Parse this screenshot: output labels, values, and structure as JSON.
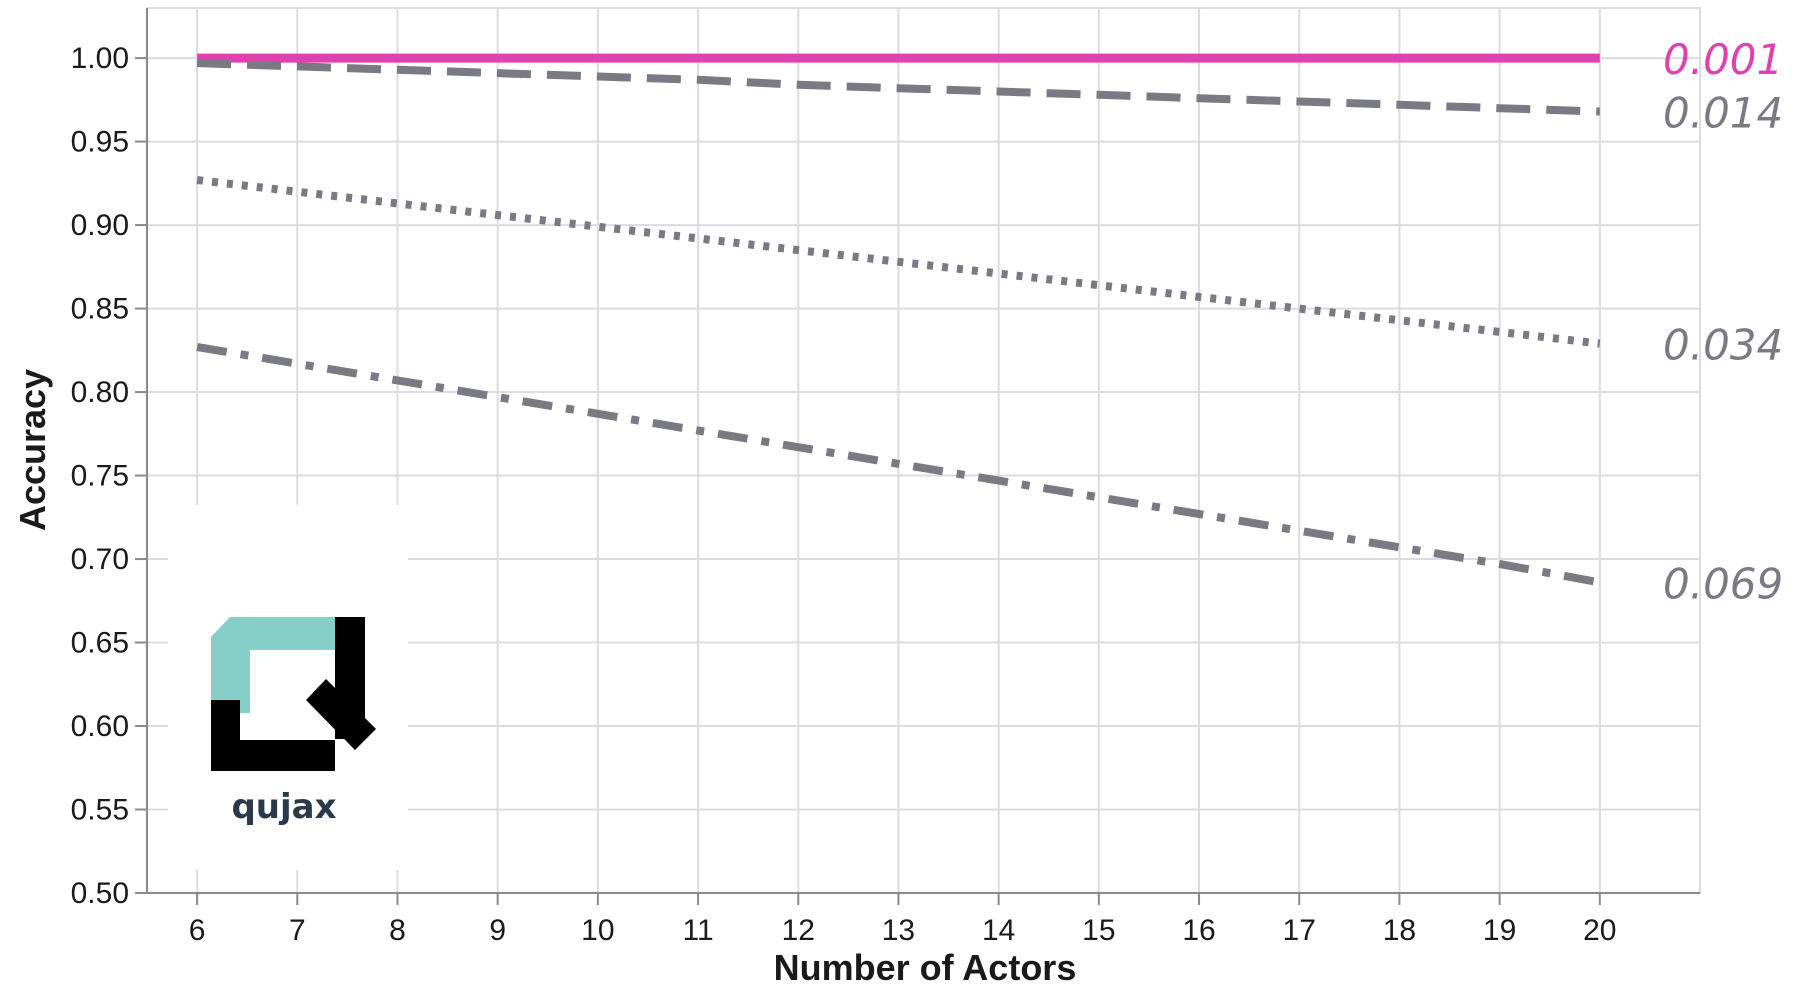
{
  "chart_data": {
    "type": "line",
    "xlabel": "Number of Actors",
    "ylabel": "Accuracy",
    "x": [
      6,
      7,
      8,
      9,
      10,
      11,
      12,
      13,
      14,
      15,
      16,
      17,
      18,
      19,
      20
    ],
    "xlim": [
      5.5,
      21
    ],
    "ylim": [
      0.5,
      1.03
    ],
    "x_ticks": [
      "6",
      "7",
      "8",
      "9",
      "10",
      "11",
      "12",
      "13",
      "14",
      "15",
      "16",
      "17",
      "18",
      "19",
      "20"
    ],
    "y_ticks": [
      "0.50",
      "0.55",
      "0.60",
      "0.65",
      "0.70",
      "0.75",
      "0.80",
      "0.85",
      "0.90",
      "0.95",
      "1.00"
    ],
    "y_tick_values": [
      0.5,
      0.55,
      0.6,
      0.65,
      0.7,
      0.75,
      0.8,
      0.85,
      0.9,
      0.95,
      1.0
    ],
    "grid": true,
    "series": [
      {
        "end_label": "0.001",
        "color": "#e040b0",
        "dash": "solid",
        "values": [
          1.0,
          1.0,
          1.0,
          1.0,
          1.0,
          1.0,
          1.0,
          1.0,
          1.0,
          1.0,
          1.0,
          1.0,
          1.0,
          1.0,
          1.0
        ]
      },
      {
        "end_label": "0.014",
        "color": "#7a7a84",
        "dash": "dashed",
        "values": [
          0.997,
          0.995,
          0.993,
          0.991,
          0.989,
          0.987,
          0.984,
          0.982,
          0.98,
          0.978,
          0.976,
          0.974,
          0.972,
          0.97,
          0.968
        ]
      },
      {
        "end_label": "0.034",
        "color": "#7a7a84",
        "dash": "dotted",
        "values": [
          0.927,
          0.92,
          0.913,
          0.906,
          0.899,
          0.892,
          0.885,
          0.878,
          0.871,
          0.864,
          0.857,
          0.85,
          0.843,
          0.836,
          0.829
        ]
      },
      {
        "end_label": "0.069",
        "color": "#7a7a84",
        "dash": "dashdot",
        "values": [
          0.827,
          0.817,
          0.807,
          0.797,
          0.787,
          0.777,
          0.767,
          0.757,
          0.747,
          0.737,
          0.727,
          0.717,
          0.707,
          0.697,
          0.686
        ]
      }
    ]
  },
  "logo": {
    "text": "qujax",
    "colors": {
      "teal": "#86cfc8",
      "dark": "#000000"
    }
  }
}
